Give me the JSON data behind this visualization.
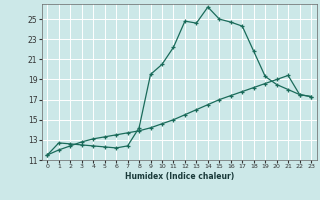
{
  "xlabel": "Humidex (Indice chaleur)",
  "bg_color": "#cce8e8",
  "grid_color": "#ffffff",
  "line_color": "#1a6b5a",
  "xlim": [
    -0.5,
    23.5
  ],
  "ylim": [
    11,
    26.5
  ],
  "yticks": [
    11,
    13,
    15,
    17,
    19,
    21,
    23,
    25
  ],
  "xticks": [
    0,
    1,
    2,
    3,
    4,
    5,
    6,
    7,
    8,
    9,
    10,
    11,
    12,
    13,
    14,
    15,
    16,
    17,
    18,
    19,
    20,
    21,
    22,
    23
  ],
  "series1_x": [
    0,
    1,
    2,
    3,
    4,
    5,
    6,
    7,
    8,
    9,
    10,
    11,
    12,
    13,
    14,
    15,
    16,
    17,
    18,
    19,
    20,
    21,
    22,
    23
  ],
  "series1_y": [
    11.5,
    12.7,
    12.6,
    12.5,
    12.4,
    12.3,
    12.2,
    12.4,
    14.2,
    19.5,
    20.5,
    22.2,
    24.8,
    24.6,
    26.2,
    25.0,
    24.7,
    24.3,
    21.8,
    19.3,
    18.5,
    18.0,
    17.5,
    17.3
  ],
  "series2_x": [
    0,
    1,
    2,
    3,
    4,
    5,
    6,
    7,
    8,
    9,
    10,
    11,
    12,
    13,
    14,
    15,
    16,
    17,
    18,
    19,
    20,
    21,
    22,
    23
  ],
  "series2_y": [
    11.5,
    12.0,
    12.4,
    12.8,
    13.1,
    13.3,
    13.5,
    13.7,
    13.9,
    14.2,
    14.6,
    15.0,
    15.5,
    16.0,
    16.5,
    17.0,
    17.4,
    17.8,
    18.2,
    18.6,
    19.0,
    19.4,
    17.5,
    17.3
  ]
}
